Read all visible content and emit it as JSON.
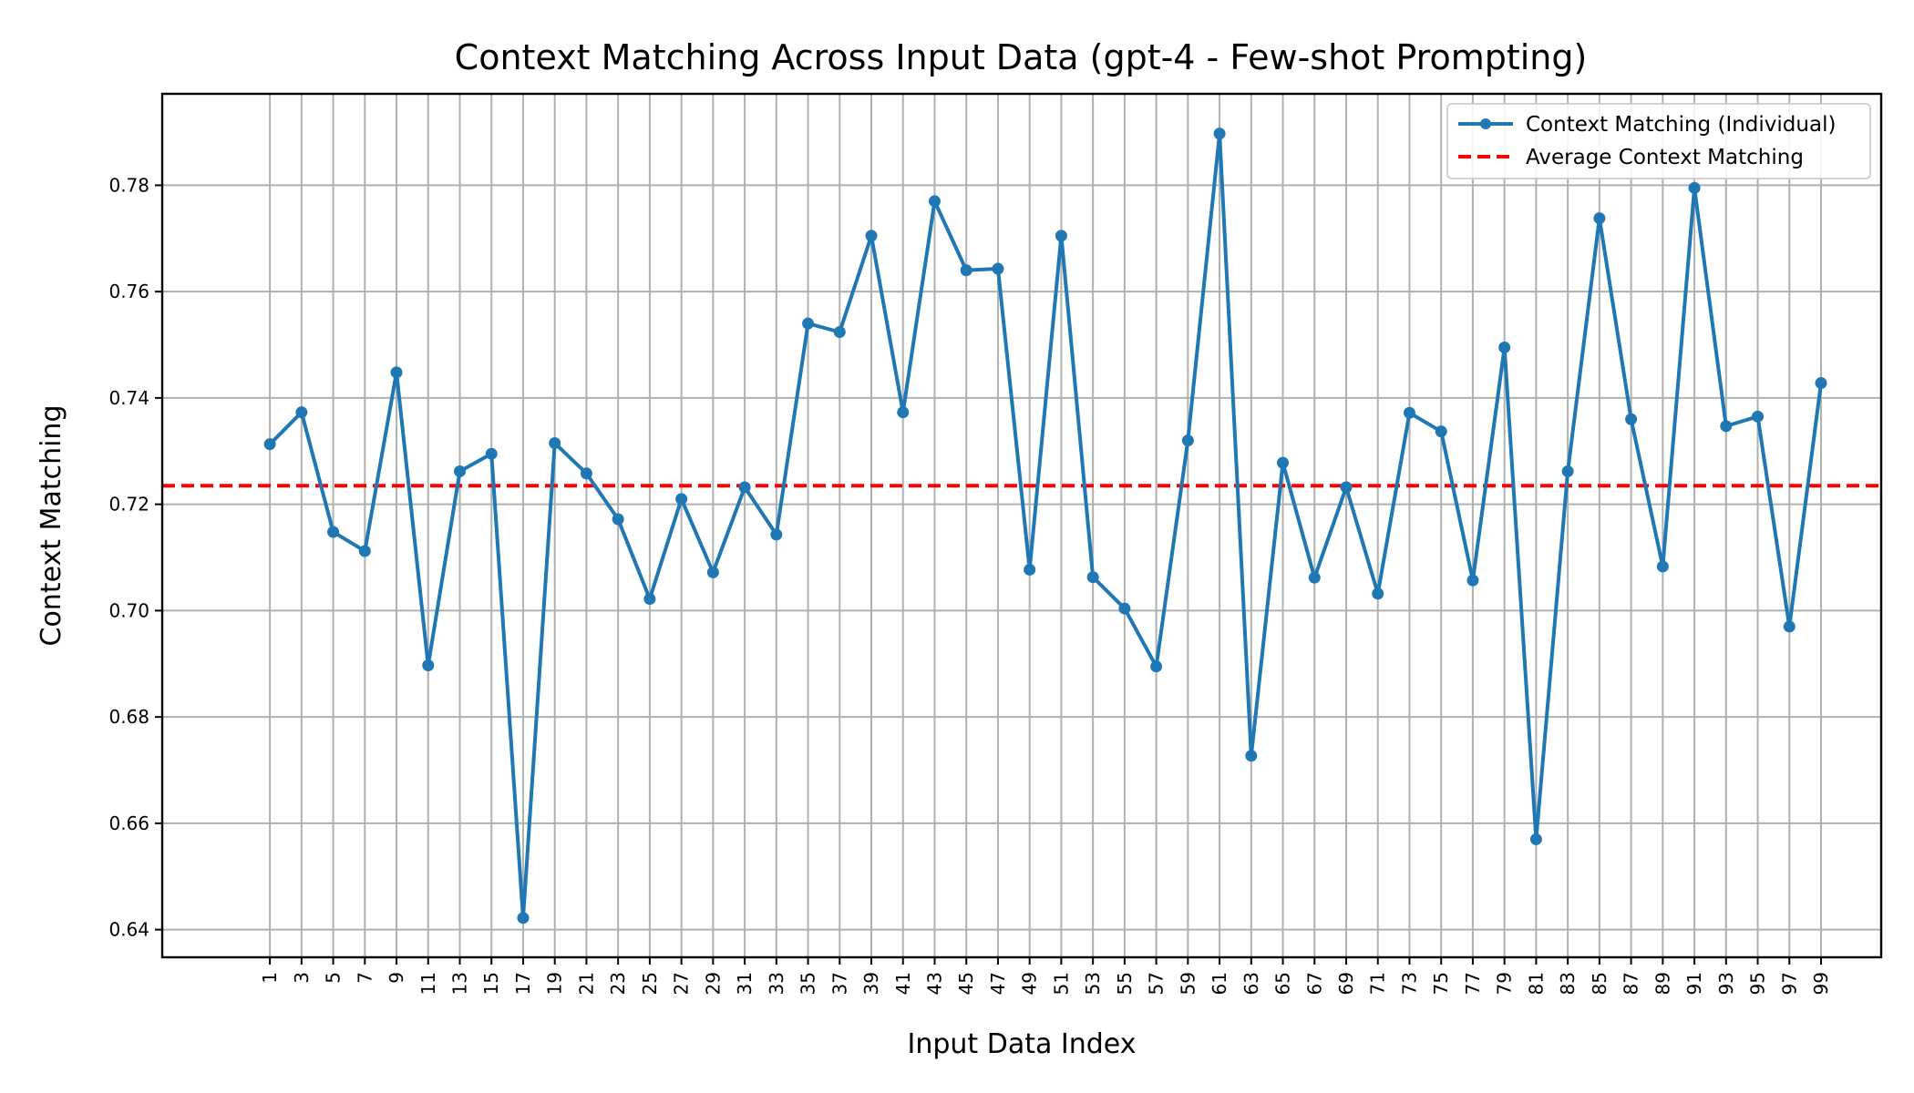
{
  "chart_data": {
    "type": "line",
    "title": "Context Matching Across Input Data (gpt-4 - Few-shot Prompting)",
    "xlabel": "Input Data Index",
    "ylabel": "Context Matching",
    "x": [
      1,
      3,
      5,
      7,
      9,
      11,
      13,
      15,
      17,
      19,
      21,
      23,
      25,
      27,
      29,
      31,
      33,
      35,
      37,
      39,
      41,
      43,
      45,
      47,
      49,
      51,
      53,
      55,
      57,
      59,
      61,
      63,
      65,
      67,
      69,
      71,
      73,
      75,
      77,
      79,
      81,
      83,
      85,
      87,
      89,
      91,
      93,
      95,
      97,
      99
    ],
    "x_tick_labels": [
      "1",
      "3",
      "5",
      "7",
      "9",
      "11",
      "13",
      "15",
      "17",
      "19",
      "21",
      "23",
      "25",
      "27",
      "29",
      "31",
      "33",
      "35",
      "37",
      "39",
      "41",
      "43",
      "45",
      "47",
      "49",
      "51",
      "53",
      "55",
      "57",
      "59",
      "61",
      "63",
      "65",
      "67",
      "69",
      "71",
      "73",
      "75",
      "77",
      "79",
      "81",
      "83",
      "85",
      "87",
      "89",
      "91",
      "93",
      "95",
      "97",
      "99"
    ],
    "xlim": [
      -5.8,
      102.8
    ],
    "ylim": [
      0.6348,
      0.7972
    ],
    "y_ticks": [
      0.64,
      0.66,
      0.68,
      0.7,
      0.72,
      0.74,
      0.76,
      0.78
    ],
    "y_tick_labels": [
      "0.64",
      "0.66",
      "0.68",
      "0.70",
      "0.72",
      "0.74",
      "0.76",
      "0.78"
    ],
    "grid": true,
    "legend_position": "top-right",
    "series": [
      {
        "name": "Context Matching (Individual)",
        "color": "#1f77b4",
        "style": "solid-with-markers",
        "values": [
          0.7313,
          0.7373,
          0.7148,
          0.7112,
          0.7448,
          0.6897,
          0.7262,
          0.7295,
          0.6422,
          0.7315,
          0.7258,
          0.7172,
          0.7022,
          0.721,
          0.7072,
          0.7232,
          0.7143,
          0.754,
          0.7524,
          0.7705,
          0.7373,
          0.777,
          0.764,
          0.7643,
          0.7077,
          0.7705,
          0.7063,
          0.7004,
          0.6895,
          0.732,
          0.7897,
          0.6727,
          0.7278,
          0.7062,
          0.7232,
          0.7032,
          0.7372,
          0.7337,
          0.7057,
          0.7495,
          0.657,
          0.7262,
          0.7738,
          0.736,
          0.7083,
          0.7795,
          0.7347,
          0.7365,
          0.697,
          0.7428
        ]
      },
      {
        "name": "Average Context Matching",
        "color": "#ff0000",
        "style": "dashed",
        "value": 0.7235
      }
    ]
  }
}
